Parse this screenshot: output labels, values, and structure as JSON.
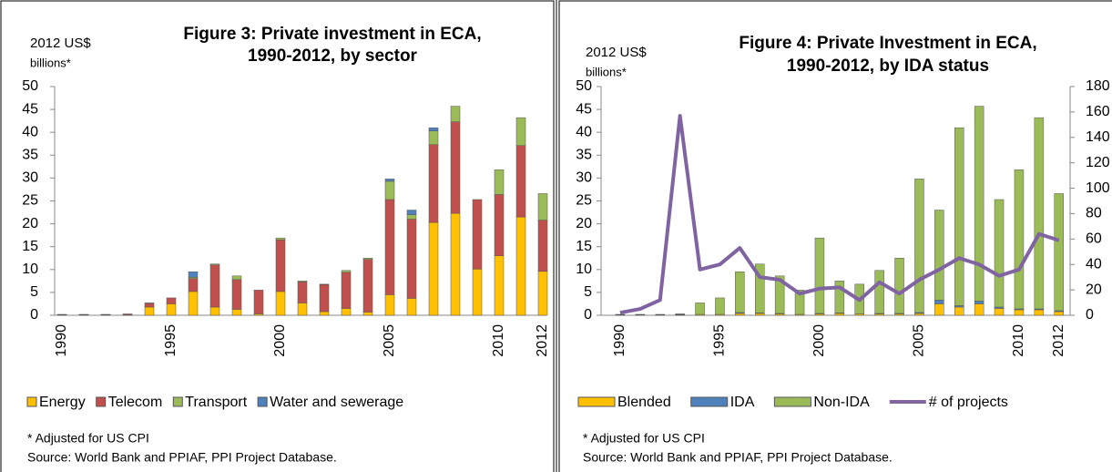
{
  "chart_data": [
    {
      "type": "stacked_bar",
      "title": [
        "Figure 3: Private investment in ECA,",
        "1990-2012, by sector"
      ],
      "y_label": [
        "2012 US$",
        "billions*"
      ],
      "categories": [
        "1990",
        null,
        null,
        null,
        null,
        "1995",
        null,
        null,
        null,
        null,
        "2000",
        null,
        null,
        null,
        null,
        "2005",
        null,
        null,
        null,
        null,
        "2010",
        null,
        "2012"
      ],
      "series": [
        {
          "name": "Energy",
          "color": "#FFC000",
          "values": [
            0.1,
            0.1,
            0.1,
            0.1,
            1.8,
            2.5,
            5.2,
            1.8,
            1.3,
            0.3,
            5.2,
            2.7,
            0.8,
            1.5,
            0.7,
            4.5,
            3.7,
            20.3,
            22.3,
            10.1,
            13.0,
            21.5,
            9.6
          ]
        },
        {
          "name": "Telecom",
          "color": "#C0504D",
          "values": [
            0.1,
            0.1,
            0.1,
            0.2,
            0.8,
            1.3,
            2.8,
            9.2,
            6.5,
            5.2,
            11.3,
            4.6,
            5.9,
            7.9,
            11.5,
            20.8,
            17.3,
            17.0,
            20.0,
            15.2,
            13.4,
            15.6,
            11.2
          ]
        },
        {
          "name": "Transport",
          "color": "#9BBB59",
          "values": [
            0,
            0,
            0,
            0,
            0.1,
            0,
            0.3,
            0.2,
            0.8,
            0,
            0.4,
            0.2,
            0.1,
            0.4,
            0.3,
            4.0,
            1.0,
            3.0,
            3.4,
            0,
            5.4,
            6.1,
            5.8
          ]
        },
        {
          "name": "Water and sewerage",
          "color": "#4F81BD",
          "values": [
            0,
            0,
            0,
            0,
            0,
            0,
            1.2,
            0,
            0,
            0,
            0,
            0,
            0,
            0,
            0,
            0.5,
            1.0,
            0.7,
            0,
            0,
            0,
            0,
            0
          ]
        }
      ],
      "ylim": [
        0,
        50
      ],
      "yticks": [
        0,
        5,
        10,
        15,
        20,
        25,
        30,
        35,
        40,
        45,
        50
      ],
      "notes": [
        "* Adjusted for US CPI",
        "Source:  World Bank and PPIAF, PPI Project Database."
      ]
    },
    {
      "type": "combo",
      "title": [
        "Figure 4: Private Investment in ECA,",
        "1990-2012, by IDA status"
      ],
      "y_label": [
        "2012 US$",
        "billions*"
      ],
      "categories": [
        "1990",
        null,
        null,
        null,
        null,
        "1995",
        null,
        null,
        null,
        null,
        "2000",
        null,
        null,
        null,
        null,
        "2005",
        null,
        null,
        null,
        null,
        "2010",
        null,
        "2012"
      ],
      "series": [
        {
          "name": "Blended",
          "color": "#FFC000",
          "values": [
            0.1,
            0.1,
            0.1,
            0.1,
            0.2,
            0.2,
            0.4,
            0.4,
            0.3,
            0.2,
            0.3,
            0.4,
            0.3,
            0.3,
            0.3,
            0.4,
            2.5,
            1.8,
            2.5,
            1.5,
            1.2,
            1.2,
            0.8
          ]
        },
        {
          "name": "IDA",
          "color": "#4F81BD",
          "values": [
            0,
            0,
            0,
            0.1,
            0,
            0,
            0.2,
            0.1,
            0.1,
            0,
            0.1,
            0.1,
            0,
            0.1,
            0.1,
            0.2,
            0.8,
            0.3,
            0.6,
            0.3,
            0.2,
            0.2,
            0.2
          ]
        },
        {
          "name": "Non-IDA",
          "color": "#9BBB59",
          "values": [
            0.1,
            0.1,
            0.1,
            0.1,
            2.5,
            3.6,
            8.9,
            10.7,
            8.2,
            5.3,
            16.5,
            7.0,
            6.5,
            9.4,
            12.1,
            29.2,
            19.7,
            38.9,
            42.6,
            23.5,
            30.4,
            41.8,
            25.6
          ]
        },
        {
          "name": "# of projects",
          "color": "#8064A2",
          "axis": "y2",
          "values": [
            2,
            5,
            12,
            157,
            36,
            40,
            53,
            30,
            28,
            17,
            21,
            22,
            12,
            26,
            17,
            28,
            36,
            45,
            40,
            31,
            36,
            64,
            59
          ]
        }
      ],
      "ylim": [
        0,
        50
      ],
      "yticks": [
        0,
        5,
        10,
        15,
        20,
        25,
        30,
        35,
        40,
        45,
        50
      ],
      "y2lim": [
        0,
        180
      ],
      "y2ticks": [
        0,
        20,
        40,
        60,
        80,
        100,
        120,
        140,
        160,
        180
      ],
      "notes": [
        "* Adjusted for US CPI",
        "Source:  World Bank and PPIAF, PPI Project Database."
      ]
    }
  ]
}
